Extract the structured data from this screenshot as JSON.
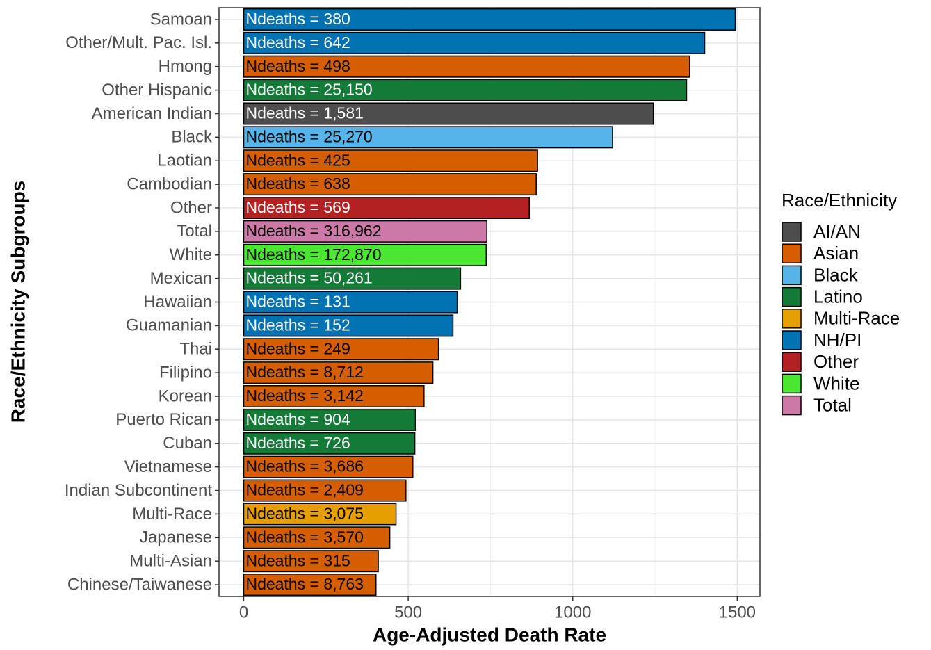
{
  "chart_data": {
    "type": "bar",
    "orientation": "horizontal",
    "x_label": "Age-Adjusted Death Rate",
    "y_label": "Race/Ethnicity Subgroups",
    "legend_title": "Race/Ethnicity",
    "legend": [
      {
        "name": "AI/AN",
        "color": "#4d4d4d"
      },
      {
        "name": "Asian",
        "color": "#d55e00"
      },
      {
        "name": "Black",
        "color": "#56b4e9"
      },
      {
        "name": "Latino",
        "color": "#137a38"
      },
      {
        "name": "Multi-Race",
        "color": "#e69f00"
      },
      {
        "name": "NH/PI",
        "color": "#0072b2"
      },
      {
        "name": "Other",
        "color": "#b22222"
      },
      {
        "name": "White",
        "color": "#4ae632"
      },
      {
        "name": "Total",
        "color": "#cc79a7"
      }
    ],
    "legend_position": "right",
    "categories": [
      "Samoan",
      "Other/Mult. Pac. Isl.",
      "Hmong",
      "Other Hispanic",
      "American Indian",
      "Black",
      "Laotian",
      "Cambodian",
      "Other",
      "Total",
      "White",
      "Mexican",
      "Hawaiian",
      "Guamanian",
      "Thai",
      "Filipino",
      "Korean",
      "Puerto Rican",
      "Cuban",
      "Vietnamese",
      "Indian Subcontinent",
      "Multi-Race",
      "Japanese",
      "Multi-Asian",
      "Chinese/Taiwanese"
    ],
    "groups": [
      "NH/PI",
      "NH/PI",
      "Asian",
      "Latino",
      "AI/AN",
      "Black",
      "Asian",
      "Asian",
      "Other",
      "Total",
      "White",
      "Latino",
      "NH/PI",
      "NH/PI",
      "Asian",
      "Asian",
      "Asian",
      "Latino",
      "Latino",
      "Asian",
      "Asian",
      "Multi-Race",
      "Asian",
      "Asian",
      "Asian"
    ],
    "values": [
      1494,
      1401,
      1355,
      1346,
      1245,
      1121,
      893,
      889,
      868,
      739,
      737,
      659,
      649,
      636,
      592,
      575,
      548,
      522,
      520,
      514,
      493,
      463,
      444,
      409,
      402
    ],
    "bar_labels": [
      "Ndeaths = 380",
      "Ndeaths = 642",
      "Ndeaths = 498",
      "Ndeaths = 25,150",
      "Ndeaths = 1,581",
      "Ndeaths = 25,270",
      "Ndeaths = 425",
      "Ndeaths = 638",
      "Ndeaths = 569",
      "Ndeaths = 316,962",
      "Ndeaths = 172,870",
      "Ndeaths = 50,261",
      "Ndeaths = 131",
      "Ndeaths = 152",
      "Ndeaths = 249",
      "Ndeaths = 8,712",
      "Ndeaths = 3,142",
      "Ndeaths = 904",
      "Ndeaths = 726",
      "Ndeaths = 3,686",
      "Ndeaths = 2,409",
      "Ndeaths = 3,075",
      "Ndeaths = 3,570",
      "Ndeaths = 315",
      "Ndeaths = 8,763"
    ],
    "xlim": [
      -75,
      1569
    ],
    "xticks": [
      0,
      500,
      1000,
      1500
    ],
    "minor_xticks": [
      250,
      750,
      1250
    ],
    "grid": true
  }
}
